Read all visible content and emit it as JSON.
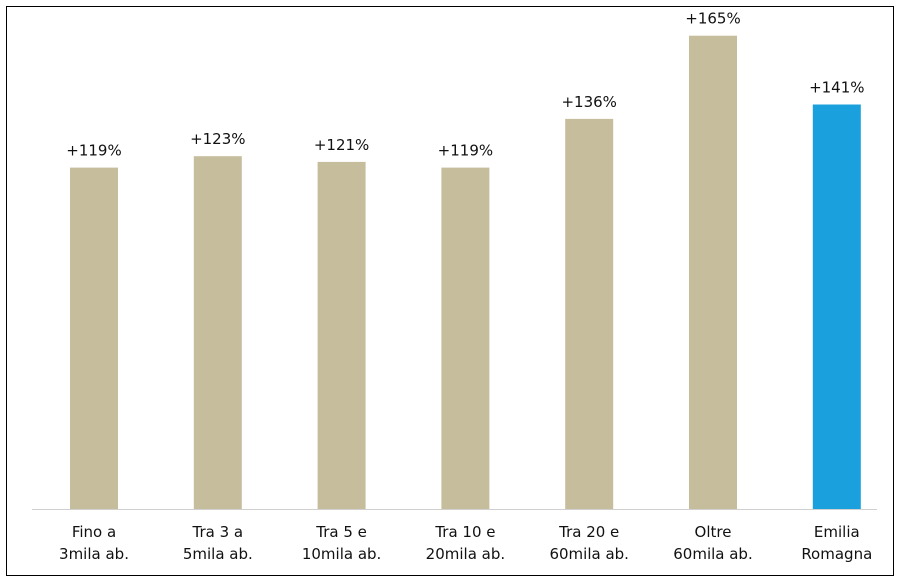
{
  "chart_data": {
    "type": "bar",
    "title": "",
    "xlabel": "",
    "ylabel": "",
    "categories": [
      [
        "Fino a",
        "3mila ab."
      ],
      [
        "Tra 3 a",
        "5mila ab."
      ],
      [
        "Tra 5 e",
        "10mila ab."
      ],
      [
        "Tra 10 e",
        "20mila ab."
      ],
      [
        "Tra 20 e",
        "60mila ab."
      ],
      [
        "Oltre",
        "60mila ab."
      ],
      [
        "Emilia",
        "Romagna"
      ]
    ],
    "values": [
      119,
      123,
      121,
      119,
      136,
      165,
      141
    ],
    "value_labels": [
      "+119%",
      "+123%",
      "+121%",
      "+119%",
      "+136%",
      "+165%",
      "+141%"
    ],
    "bar_colors": [
      "#c6bd9c",
      "#c6bd9c",
      "#c6bd9c",
      "#c6bd9c",
      "#c6bd9c",
      "#c6bd9c",
      "#1aa0dd"
    ],
    "ylim": [
      0,
      175
    ],
    "grid": false,
    "legend": "none"
  }
}
